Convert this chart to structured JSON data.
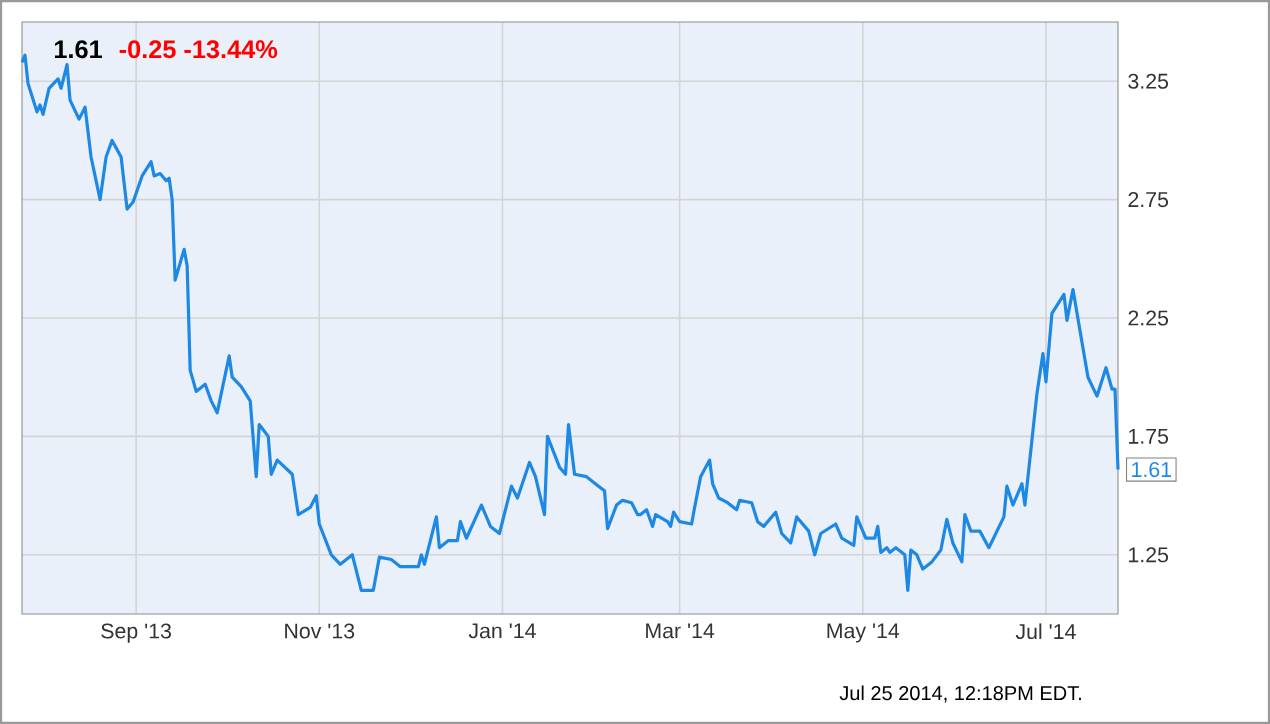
{
  "chart_data": {
    "type": "line",
    "title": "1.61",
    "subtitle": "-0.25 -13.44%",
    "x": [
      "2013-07-25",
      "2013-07-26",
      "2013-07-27",
      "2013-07-30",
      "2013-07-31",
      "2013-08-01",
      "2013-08-03",
      "2013-08-06",
      "2013-08-07",
      "2013-08-09",
      "2013-08-10",
      "2013-08-13",
      "2013-08-15",
      "2013-08-17",
      "2013-08-20",
      "2013-08-22",
      "2013-08-24",
      "2013-08-27",
      "2013-08-29",
      "2013-08-31",
      "2013-09-03",
      "2013-09-06",
      "2013-09-07",
      "2013-09-09",
      "2013-09-11",
      "2013-09-12",
      "2013-09-13",
      "2013-09-14",
      "2013-09-17",
      "2013-09-18",
      "2013-09-19",
      "2013-09-21",
      "2013-09-24",
      "2013-09-26",
      "2013-09-28",
      "2013-10-02",
      "2013-10-03",
      "2013-10-06",
      "2013-10-09",
      "2013-10-11",
      "2013-10-12",
      "2013-10-15",
      "2013-10-16",
      "2013-10-18",
      "2013-10-23",
      "2013-10-25",
      "2013-10-29",
      "2013-10-31",
      "2013-11-01",
      "2013-11-05",
      "2013-11-08",
      "2013-11-12",
      "2013-11-15",
      "2013-11-19",
      "2013-11-21",
      "2013-11-25",
      "2013-11-28",
      "2013-12-04",
      "2013-12-05",
      "2013-12-06",
      "2013-12-10",
      "2013-12-11",
      "2013-12-14",
      "2013-12-17",
      "2013-12-18",
      "2013-12-20",
      "2013-12-25",
      "2013-12-28",
      "2013-12-31",
      "2014-01-04",
      "2014-01-06",
      "2014-01-10",
      "2014-01-12",
      "2014-01-15",
      "2014-01-16",
      "2014-01-20",
      "2014-01-22",
      "2014-01-23",
      "2014-01-25",
      "2014-01-29",
      "2014-02-02",
      "2014-02-04",
      "2014-02-05",
      "2014-02-08",
      "2014-02-10",
      "2014-02-13",
      "2014-02-15",
      "2014-02-16",
      "2014-02-18",
      "2014-02-20",
      "2014-02-21",
      "2014-02-25",
      "2014-02-26",
      "2014-02-27",
      "2014-03-01",
      "2014-03-05",
      "2014-03-06",
      "2014-03-08",
      "2014-03-11",
      "2014-03-12",
      "2014-03-14",
      "2014-03-17",
      "2014-03-20",
      "2014-03-21",
      "2014-03-25",
      "2014-03-27",
      "2014-03-29",
      "2014-04-02",
      "2014-04-04",
      "2014-04-07",
      "2014-04-09",
      "2014-04-13",
      "2014-04-15",
      "2014-04-17",
      "2014-04-22",
      "2014-04-24",
      "2014-04-28",
      "2014-04-29",
      "2014-05-02",
      "2014-05-05",
      "2014-05-06",
      "2014-05-07",
      "2014-05-09",
      "2014-05-10",
      "2014-05-12",
      "2014-05-15",
      "2014-05-16",
      "2014-05-17",
      "2014-05-19",
      "2014-05-21",
      "2014-05-24",
      "2014-05-27",
      "2014-05-29",
      "2014-05-31",
      "2014-06-03",
      "2014-06-04",
      "2014-06-06",
      "2014-06-09",
      "2014-06-12",
      "2014-06-17",
      "2014-06-18",
      "2014-06-20",
      "2014-06-23",
      "2014-06-24",
      "2014-06-28",
      "2014-06-30",
      "2014-07-01",
      "2014-07-03",
      "2014-07-07",
      "2014-07-08",
      "2014-07-10",
      "2014-07-15",
      "2014-07-18",
      "2014-07-21",
      "2014-07-23",
      "2014-07-24",
      "2014-07-25"
    ],
    "series": [
      {
        "color": "#1e88e5",
        "values": [
          3.33,
          3.36,
          3.24,
          3.12,
          3.15,
          3.11,
          3.22,
          3.26,
          3.22,
          3.32,
          3.17,
          3.09,
          3.14,
          2.93,
          2.75,
          2.93,
          3.0,
          2.93,
          2.71,
          2.74,
          2.85,
          2.91,
          2.85,
          2.86,
          2.83,
          2.84,
          2.75,
          2.41,
          2.54,
          2.47,
          2.03,
          1.94,
          1.97,
          1.9,
          1.85,
          2.09,
          2.0,
          1.96,
          1.9,
          1.58,
          1.8,
          1.75,
          1.59,
          1.65,
          1.59,
          1.42,
          1.45,
          1.5,
          1.38,
          1.25,
          1.21,
          1.25,
          1.1,
          1.1,
          1.24,
          1.23,
          1.2,
          1.2,
          1.25,
          1.21,
          1.41,
          1.28,
          1.31,
          1.31,
          1.39,
          1.32,
          1.46,
          1.37,
          1.34,
          1.54,
          1.49,
          1.64,
          1.58,
          1.42,
          1.75,
          1.62,
          1.59,
          1.8,
          1.59,
          1.58,
          1.54,
          1.52,
          1.36,
          1.46,
          1.48,
          1.47,
          1.42,
          1.42,
          1.44,
          1.37,
          1.42,
          1.39,
          1.37,
          1.43,
          1.39,
          1.38,
          1.45,
          1.58,
          1.65,
          1.55,
          1.49,
          1.47,
          1.44,
          1.48,
          1.47,
          1.39,
          1.37,
          1.43,
          1.34,
          1.3,
          1.41,
          1.35,
          1.25,
          1.34,
          1.38,
          1.32,
          1.29,
          1.41,
          1.32,
          1.32,
          1.37,
          1.26,
          1.28,
          1.26,
          1.28,
          1.25,
          1.1,
          1.27,
          1.25,
          1.19,
          1.22,
          1.27,
          1.4,
          1.3,
          1.22,
          1.42,
          1.35,
          1.35,
          1.28,
          1.41,
          1.54,
          1.46,
          1.55,
          1.46,
          1.93,
          2.1,
          1.98,
          2.27,
          2.35,
          2.24,
          2.37,
          2.0,
          1.92,
          2.04,
          1.95,
          1.95,
          1.61
        ]
      }
    ],
    "xlim": [
      "2013-07-25",
      "2014-07-25"
    ],
    "xticks": [
      {
        "value": "2013-09-01",
        "label": "Sep '13"
      },
      {
        "value": "2013-11-01",
        "label": "Nov '13"
      },
      {
        "value": "2014-01-01",
        "label": "Jan '14"
      },
      {
        "value": "2014-03-01",
        "label": "Mar '14"
      },
      {
        "value": "2014-05-01",
        "label": "May '14"
      },
      {
        "value": "2014-07-01",
        "label": "Jul '14"
      }
    ],
    "ylim": [
      1.0,
      3.5
    ],
    "yticks": [
      1.25,
      1.75,
      2.25,
      2.75,
      3.25
    ],
    "grid": true,
    "marker": "none",
    "line_style": "solid",
    "annotations": [
      {
        "text": "1.61",
        "x": "2014-07-25",
        "y": 1.61
      },
      "Jul 25 2014, 12:18PM EDT."
    ]
  }
}
